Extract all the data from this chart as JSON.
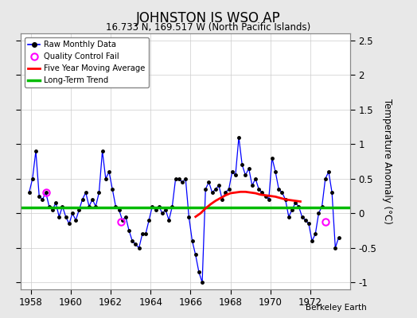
{
  "title": "JOHNSTON IS WSO AP",
  "subtitle": "16.733 N, 169.517 W (North Pacific Islands)",
  "ylabel": "Temperature Anomaly (°C)",
  "credit": "Berkeley Earth",
  "xlim": [
    1957.5,
    1974.0
  ],
  "ylim": [
    -1.1,
    2.6
  ],
  "yticks": [
    -1,
    -0.5,
    0,
    0.5,
    1,
    1.5,
    2,
    2.5
  ],
  "xticks": [
    1958,
    1960,
    1962,
    1964,
    1966,
    1968,
    1970,
    1972
  ],
  "fig_facecolor": "#e8e8e8",
  "plot_facecolor": "#ffffff",
  "raw_line_color": "#0000ff",
  "raw_dot_color": "#000000",
  "qc_fail_color": "#ff00ff",
  "moving_avg_color": "#ff0000",
  "trend_color": "#00bb00",
  "grid_color": "#cccccc",
  "raw_data": [
    [
      1957.917,
      0.3
    ],
    [
      1958.083,
      0.5
    ],
    [
      1958.25,
      0.9
    ],
    [
      1958.417,
      0.25
    ],
    [
      1958.583,
      0.2
    ],
    [
      1958.75,
      0.3
    ],
    [
      1958.917,
      0.1
    ],
    [
      1959.083,
      0.05
    ],
    [
      1959.25,
      0.15
    ],
    [
      1959.417,
      -0.05
    ],
    [
      1959.583,
      0.1
    ],
    [
      1959.75,
      -0.05
    ],
    [
      1959.917,
      -0.15
    ],
    [
      1960.083,
      0.0
    ],
    [
      1960.25,
      -0.1
    ],
    [
      1960.417,
      0.05
    ],
    [
      1960.583,
      0.2
    ],
    [
      1960.75,
      0.3
    ],
    [
      1960.917,
      0.1
    ],
    [
      1961.083,
      0.2
    ],
    [
      1961.25,
      0.1
    ],
    [
      1961.417,
      0.3
    ],
    [
      1961.583,
      0.9
    ],
    [
      1961.75,
      0.5
    ],
    [
      1961.917,
      0.6
    ],
    [
      1962.083,
      0.35
    ],
    [
      1962.25,
      0.1
    ],
    [
      1962.417,
      0.05
    ],
    [
      1962.583,
      -0.1
    ],
    [
      1962.75,
      -0.05
    ],
    [
      1962.917,
      -0.25
    ],
    [
      1963.083,
      -0.4
    ],
    [
      1963.25,
      -0.45
    ],
    [
      1963.417,
      -0.5
    ],
    [
      1963.583,
      -0.3
    ],
    [
      1963.75,
      -0.3
    ],
    [
      1963.917,
      -0.1
    ],
    [
      1964.083,
      0.1
    ],
    [
      1964.25,
      0.05
    ],
    [
      1964.417,
      0.1
    ],
    [
      1964.583,
      0.0
    ],
    [
      1964.75,
      0.05
    ],
    [
      1964.917,
      -0.1
    ],
    [
      1965.083,
      0.1
    ],
    [
      1965.25,
      0.5
    ],
    [
      1965.417,
      0.5
    ],
    [
      1965.583,
      0.45
    ],
    [
      1965.75,
      0.5
    ],
    [
      1965.917,
      -0.05
    ],
    [
      1966.083,
      -0.4
    ],
    [
      1966.25,
      -0.6
    ],
    [
      1966.417,
      -0.85
    ],
    [
      1966.583,
      -1.0
    ],
    [
      1966.75,
      0.35
    ],
    [
      1966.917,
      0.45
    ],
    [
      1967.083,
      0.3
    ],
    [
      1967.25,
      0.35
    ],
    [
      1967.417,
      0.4
    ],
    [
      1967.583,
      0.2
    ],
    [
      1967.75,
      0.3
    ],
    [
      1967.917,
      0.35
    ],
    [
      1968.083,
      0.6
    ],
    [
      1968.25,
      0.55
    ],
    [
      1968.417,
      1.1
    ],
    [
      1968.583,
      0.7
    ],
    [
      1968.75,
      0.55
    ],
    [
      1968.917,
      0.65
    ],
    [
      1969.083,
      0.4
    ],
    [
      1969.25,
      0.5
    ],
    [
      1969.417,
      0.35
    ],
    [
      1969.583,
      0.3
    ],
    [
      1969.75,
      0.25
    ],
    [
      1969.917,
      0.2
    ],
    [
      1970.083,
      0.8
    ],
    [
      1970.25,
      0.6
    ],
    [
      1970.417,
      0.35
    ],
    [
      1970.583,
      0.3
    ],
    [
      1970.75,
      0.2
    ],
    [
      1970.917,
      -0.05
    ],
    [
      1971.083,
      0.05
    ],
    [
      1971.25,
      0.15
    ],
    [
      1971.417,
      0.1
    ],
    [
      1971.583,
      -0.05
    ],
    [
      1971.75,
      -0.1
    ],
    [
      1971.917,
      -0.15
    ],
    [
      1972.083,
      -0.4
    ],
    [
      1972.25,
      -0.3
    ],
    [
      1972.417,
      0.0
    ],
    [
      1972.583,
      0.1
    ],
    [
      1972.75,
      0.5
    ],
    [
      1972.917,
      0.6
    ],
    [
      1973.083,
      0.3
    ],
    [
      1973.25,
      -0.5
    ],
    [
      1973.417,
      -0.35
    ]
  ],
  "qc_fail_points": [
    [
      1958.75,
      0.3
    ],
    [
      1962.5,
      -0.12
    ],
    [
      1972.75,
      -0.12
    ]
  ],
  "moving_avg_data": [
    [
      1966.25,
      -0.05
    ],
    [
      1966.5,
      0.0
    ],
    [
      1966.75,
      0.07
    ],
    [
      1967.0,
      0.13
    ],
    [
      1967.25,
      0.18
    ],
    [
      1967.5,
      0.22
    ],
    [
      1967.75,
      0.26
    ],
    [
      1968.0,
      0.29
    ],
    [
      1968.25,
      0.3
    ],
    [
      1968.5,
      0.31
    ],
    [
      1968.75,
      0.31
    ],
    [
      1969.0,
      0.3
    ],
    [
      1969.25,
      0.29
    ],
    [
      1969.5,
      0.27
    ],
    [
      1969.75,
      0.26
    ],
    [
      1970.0,
      0.25
    ],
    [
      1970.25,
      0.24
    ],
    [
      1970.5,
      0.22
    ],
    [
      1970.75,
      0.2
    ],
    [
      1971.0,
      0.19
    ],
    [
      1971.25,
      0.18
    ],
    [
      1971.5,
      0.17
    ]
  ],
  "trend_x": [
    1957.5,
    1974.0
  ],
  "trend_y": [
    0.08,
    0.08
  ]
}
